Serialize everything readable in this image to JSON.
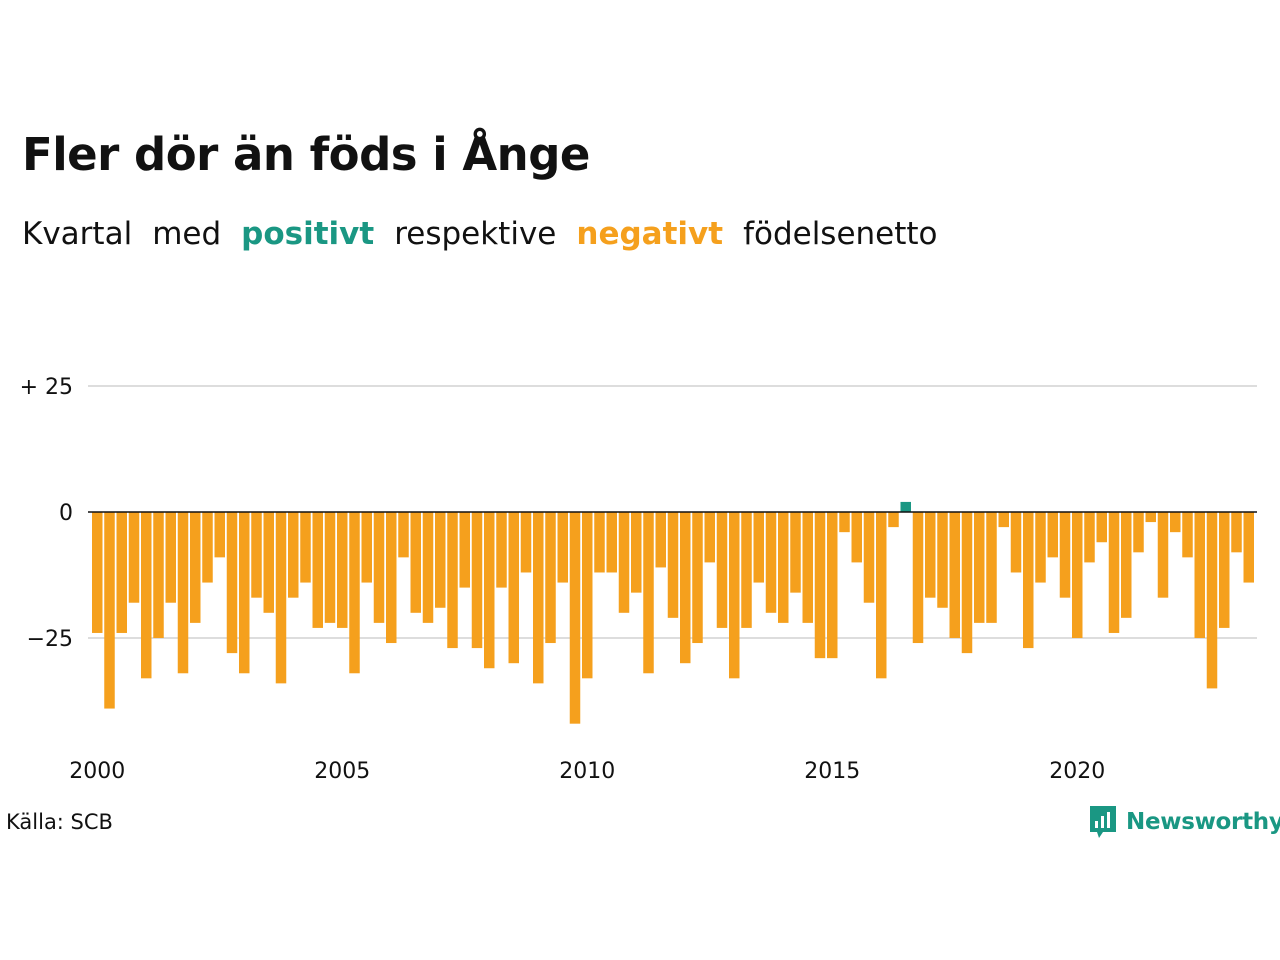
{
  "title": "Fler dör än föds i Ånge",
  "subtitle": {
    "w1": "Kvartal",
    "w2": "med",
    "positive": "positivt",
    "w3": "respektive",
    "negative": "negativt",
    "w4": "födelsenetto"
  },
  "source": "Källa: SCB",
  "brand": "Newsworthy",
  "colors": {
    "positive": "#1a9783",
    "negative": "#f5a01d",
    "grid": "#dddddd",
    "zero_line": "#111111"
  },
  "chart_data": {
    "type": "bar",
    "title": "Fler dör än föds i Ånge",
    "subtitle": "Kvartal med positivt respektive negativt födelsenetto",
    "xlabel": "",
    "ylabel": "",
    "ylim": [
      -42,
      35
    ],
    "yticks": [
      {
        "value": 25,
        "label": "+ 25"
      },
      {
        "value": 0,
        "label": "0"
      },
      {
        "value": -25,
        "label": "−25"
      }
    ],
    "x_start": 2000,
    "xticks": [
      {
        "value": 2000,
        "label": "2000"
      },
      {
        "value": 2005,
        "label": "2005"
      },
      {
        "value": 2010,
        "label": "2010"
      },
      {
        "value": 2015,
        "label": "2015"
      },
      {
        "value": 2020,
        "label": "2020"
      }
    ],
    "grid": true,
    "legend": "in subtitle",
    "period": "quarter",
    "values": [
      -24,
      -39,
      -24,
      -18,
      -33,
      -25,
      -18,
      -32,
      -22,
      -14,
      -9,
      -28,
      -32,
      -17,
      -20,
      -34,
      -17,
      -14,
      -23,
      -22,
      -23,
      -32,
      -14,
      -22,
      -26,
      -9,
      -20,
      -22,
      -19,
      -27,
      -15,
      -27,
      -31,
      -15,
      -30,
      -12,
      -34,
      -26,
      -14,
      -42,
      -33,
      -12,
      -12,
      -20,
      -16,
      -32,
      -11,
      -21,
      -30,
      -26,
      -10,
      -23,
      -33,
      -23,
      -14,
      -20,
      -22,
      -16,
      -22,
      -29,
      -29,
      -4,
      -10,
      -18,
      -33,
      -3,
      2,
      -26,
      -17,
      -19,
      -25,
      -28,
      -22,
      -22,
      -3,
      -12,
      -27,
      -14,
      -9,
      -17,
      -25,
      -10,
      -6,
      -24,
      -21,
      -8,
      -2,
      -17,
      -4,
      -9,
      -25,
      -35,
      -23,
      -8,
      -14
    ]
  }
}
